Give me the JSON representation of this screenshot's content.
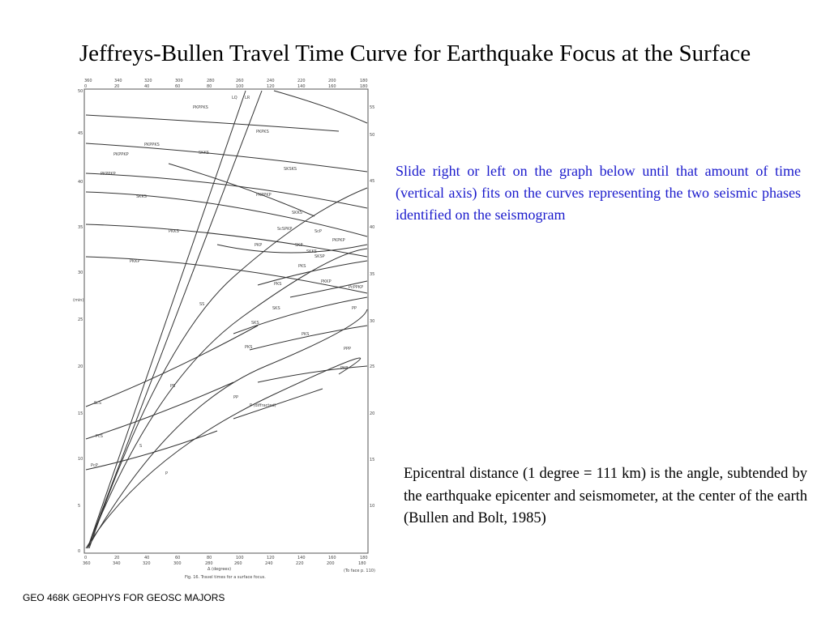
{
  "slide": {
    "title": "Jeffreys-Bullen Travel Time Curve for Earthquake Focus at the Surface",
    "instruction": "Slide right or left on the graph below until that amount of time (vertical axis) fits on the curves representing the two seismic phases identified on the seismogram",
    "note": "Epicentral distance (1 degree = 111 km) is the angle, subtended by the earthquake epicenter and seismometer, at the center of the earth (Bullen and Bolt, 1985)",
    "footer": "GEO 468K GEOPHYS FOR GEOSC MAJORS",
    "instruction_color": "#1a1acc"
  },
  "figure": {
    "caption": "Fig. 16. Travel times for a surface focus.",
    "caption_note": "(To face p. 110)",
    "x_label": "Δ (degrees)",
    "y_label": "(min)",
    "top_axis_outer": [
      "360",
      "340",
      "320",
      "300",
      "280",
      "260",
      "240",
      "220",
      "200",
      "180"
    ],
    "top_axis_inner": [
      "0",
      "20",
      "40",
      "60",
      "80",
      "100",
      "120",
      "140",
      "160",
      "180"
    ],
    "bottom_axis_top": [
      "0",
      "20",
      "40",
      "60",
      "80",
      "100",
      "120",
      "140",
      "160",
      "180"
    ],
    "bottom_axis_bottom": [
      "360",
      "340",
      "320",
      "300",
      "280",
      "260",
      "240",
      "220",
      "200",
      "180"
    ],
    "y_ticks": [
      "50",
      "45",
      "40",
      "35",
      "30",
      "25",
      "20",
      "15",
      "10",
      "5",
      "0"
    ],
    "right_ticks": [
      "55",
      "50",
      "45",
      "40",
      "35",
      "30",
      "25",
      "20",
      "15",
      "10",
      "5"
    ],
    "phase_labels": [
      "PKPPKS",
      "PKPKS",
      "PKPPKS",
      "SKKS",
      "PKPPKP",
      "SKSKS",
      "PKPPKP",
      "SKKS",
      "PKPPKP",
      "SKKS",
      "PKKS",
      "PKKP",
      "ScSPKP",
      "PKPKP",
      "SKP",
      "ScP",
      "SKKS",
      "SKSP",
      "PKP",
      "PKS",
      "PcPPKP",
      "PKKP",
      "SKS",
      "PKS",
      "SKS",
      "PP",
      "PPP",
      "PKS",
      "PKS",
      "PKP",
      "PcS",
      "ScS",
      "PcP",
      "P (diffracted)",
      "PP",
      "P",
      "S",
      "LR",
      "LQ",
      "SS",
      "PS"
    ]
  }
}
